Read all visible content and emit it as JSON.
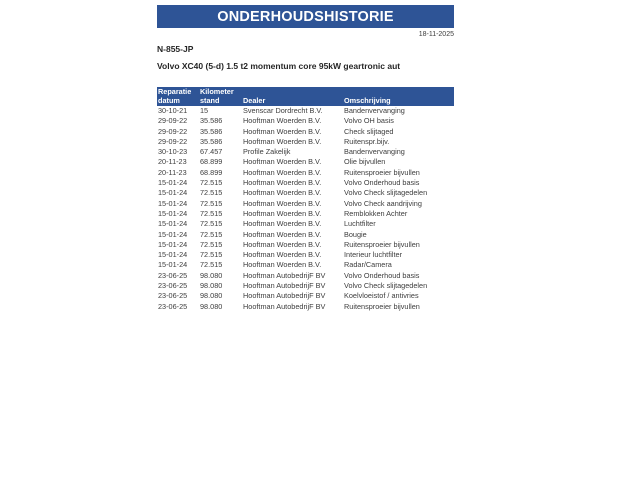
{
  "header": {
    "title": "ONDERHOUDSHISTORIE",
    "date": "18-11-2025"
  },
  "vehicle": {
    "license_plate": "N-855-JP",
    "description": "Volvo XC40 (5-d) 1.5 t2 momentum core 95kW geartronic aut"
  },
  "colors": {
    "accent_blue": "#2e5496",
    "body_text": "#3d3d3d"
  },
  "table": {
    "columns": [
      {
        "line1": "Reparatie",
        "line2": "datum"
      },
      {
        "line1": "Kilometer",
        "line2": "stand"
      },
      {
        "line1": "",
        "line2": "Dealer"
      },
      {
        "line1": "",
        "line2": "Omschrijving"
      }
    ],
    "rows": [
      {
        "date": "30-10-21",
        "km": "15",
        "dealer": "Svenscar Dordrecht B.V.",
        "description": "Bandenvervanging"
      },
      {
        "date": "29-09-22",
        "km": "35.586",
        "dealer": "Hooftman Woerden B.V.",
        "description": "Volvo OH basis"
      },
      {
        "date": "29-09-22",
        "km": "35.586",
        "dealer": "Hooftman Woerden B.V.",
        "description": "Check slijtaged"
      },
      {
        "date": "29-09-22",
        "km": "35.586",
        "dealer": "Hooftman Woerden B.V.",
        "description": "Ruitenspr.bijv."
      },
      {
        "date": "30-10-23",
        "km": "67.457",
        "dealer": "Profile Zakelijk",
        "description": "Bandenvervanging"
      },
      {
        "date": "20-11-23",
        "km": "68.899",
        "dealer": "Hooftman Woerden B.V.",
        "description": "Olie bijvullen"
      },
      {
        "date": "20-11-23",
        "km": "68.899",
        "dealer": "Hooftman Woerden B.V.",
        "description": "Ruitensproeier bijvullen"
      },
      {
        "date": "15-01-24",
        "km": "72.515",
        "dealer": "Hooftman Woerden B.V.",
        "description": "Volvo Onderhoud basis"
      },
      {
        "date": "15-01-24",
        "km": "72.515",
        "dealer": "Hooftman Woerden B.V.",
        "description": "Volvo Check slijtagedelen"
      },
      {
        "date": "15-01-24",
        "km": "72.515",
        "dealer": "Hooftman Woerden B.V.",
        "description": "Volvo Check aandrijving"
      },
      {
        "date": "15-01-24",
        "km": "72.515",
        "dealer": "Hooftman Woerden B.V.",
        "description": "Remblokken Achter"
      },
      {
        "date": "15-01-24",
        "km": "72.515",
        "dealer": "Hooftman Woerden B.V.",
        "description": "Luchtfilter"
      },
      {
        "date": "15-01-24",
        "km": "72.515",
        "dealer": "Hooftman Woerden B.V.",
        "description": "Bougie"
      },
      {
        "date": "15-01-24",
        "km": "72.515",
        "dealer": "Hooftman Woerden B.V.",
        "description": "Ruitensproeier bijvullen"
      },
      {
        "date": "15-01-24",
        "km": "72.515",
        "dealer": "Hooftman Woerden B.V.",
        "description": "Interieur luchtfilter"
      },
      {
        "date": "15-01-24",
        "km": "72.515",
        "dealer": "Hooftman Woerden B.V.",
        "description": "Radar/Camera"
      },
      {
        "date": "23-06-25",
        "km": "98.080",
        "dealer": "Hooftman AutobedrijF BV",
        "description": "Volvo Onderhoud basis"
      },
      {
        "date": "23-06-25",
        "km": "98.080",
        "dealer": "Hooftman AutobedrijF BV",
        "description": "Volvo Check slijtagedelen"
      },
      {
        "date": "23-06-25",
        "km": "98.080",
        "dealer": "Hooftman AutobedrijF BV",
        "description": "Koelvloeistof / antivries"
      },
      {
        "date": "23-06-25",
        "km": "98.080",
        "dealer": "Hooftman AutobedrijF BV",
        "description": "Ruitensproeier bijvullen"
      }
    ]
  }
}
